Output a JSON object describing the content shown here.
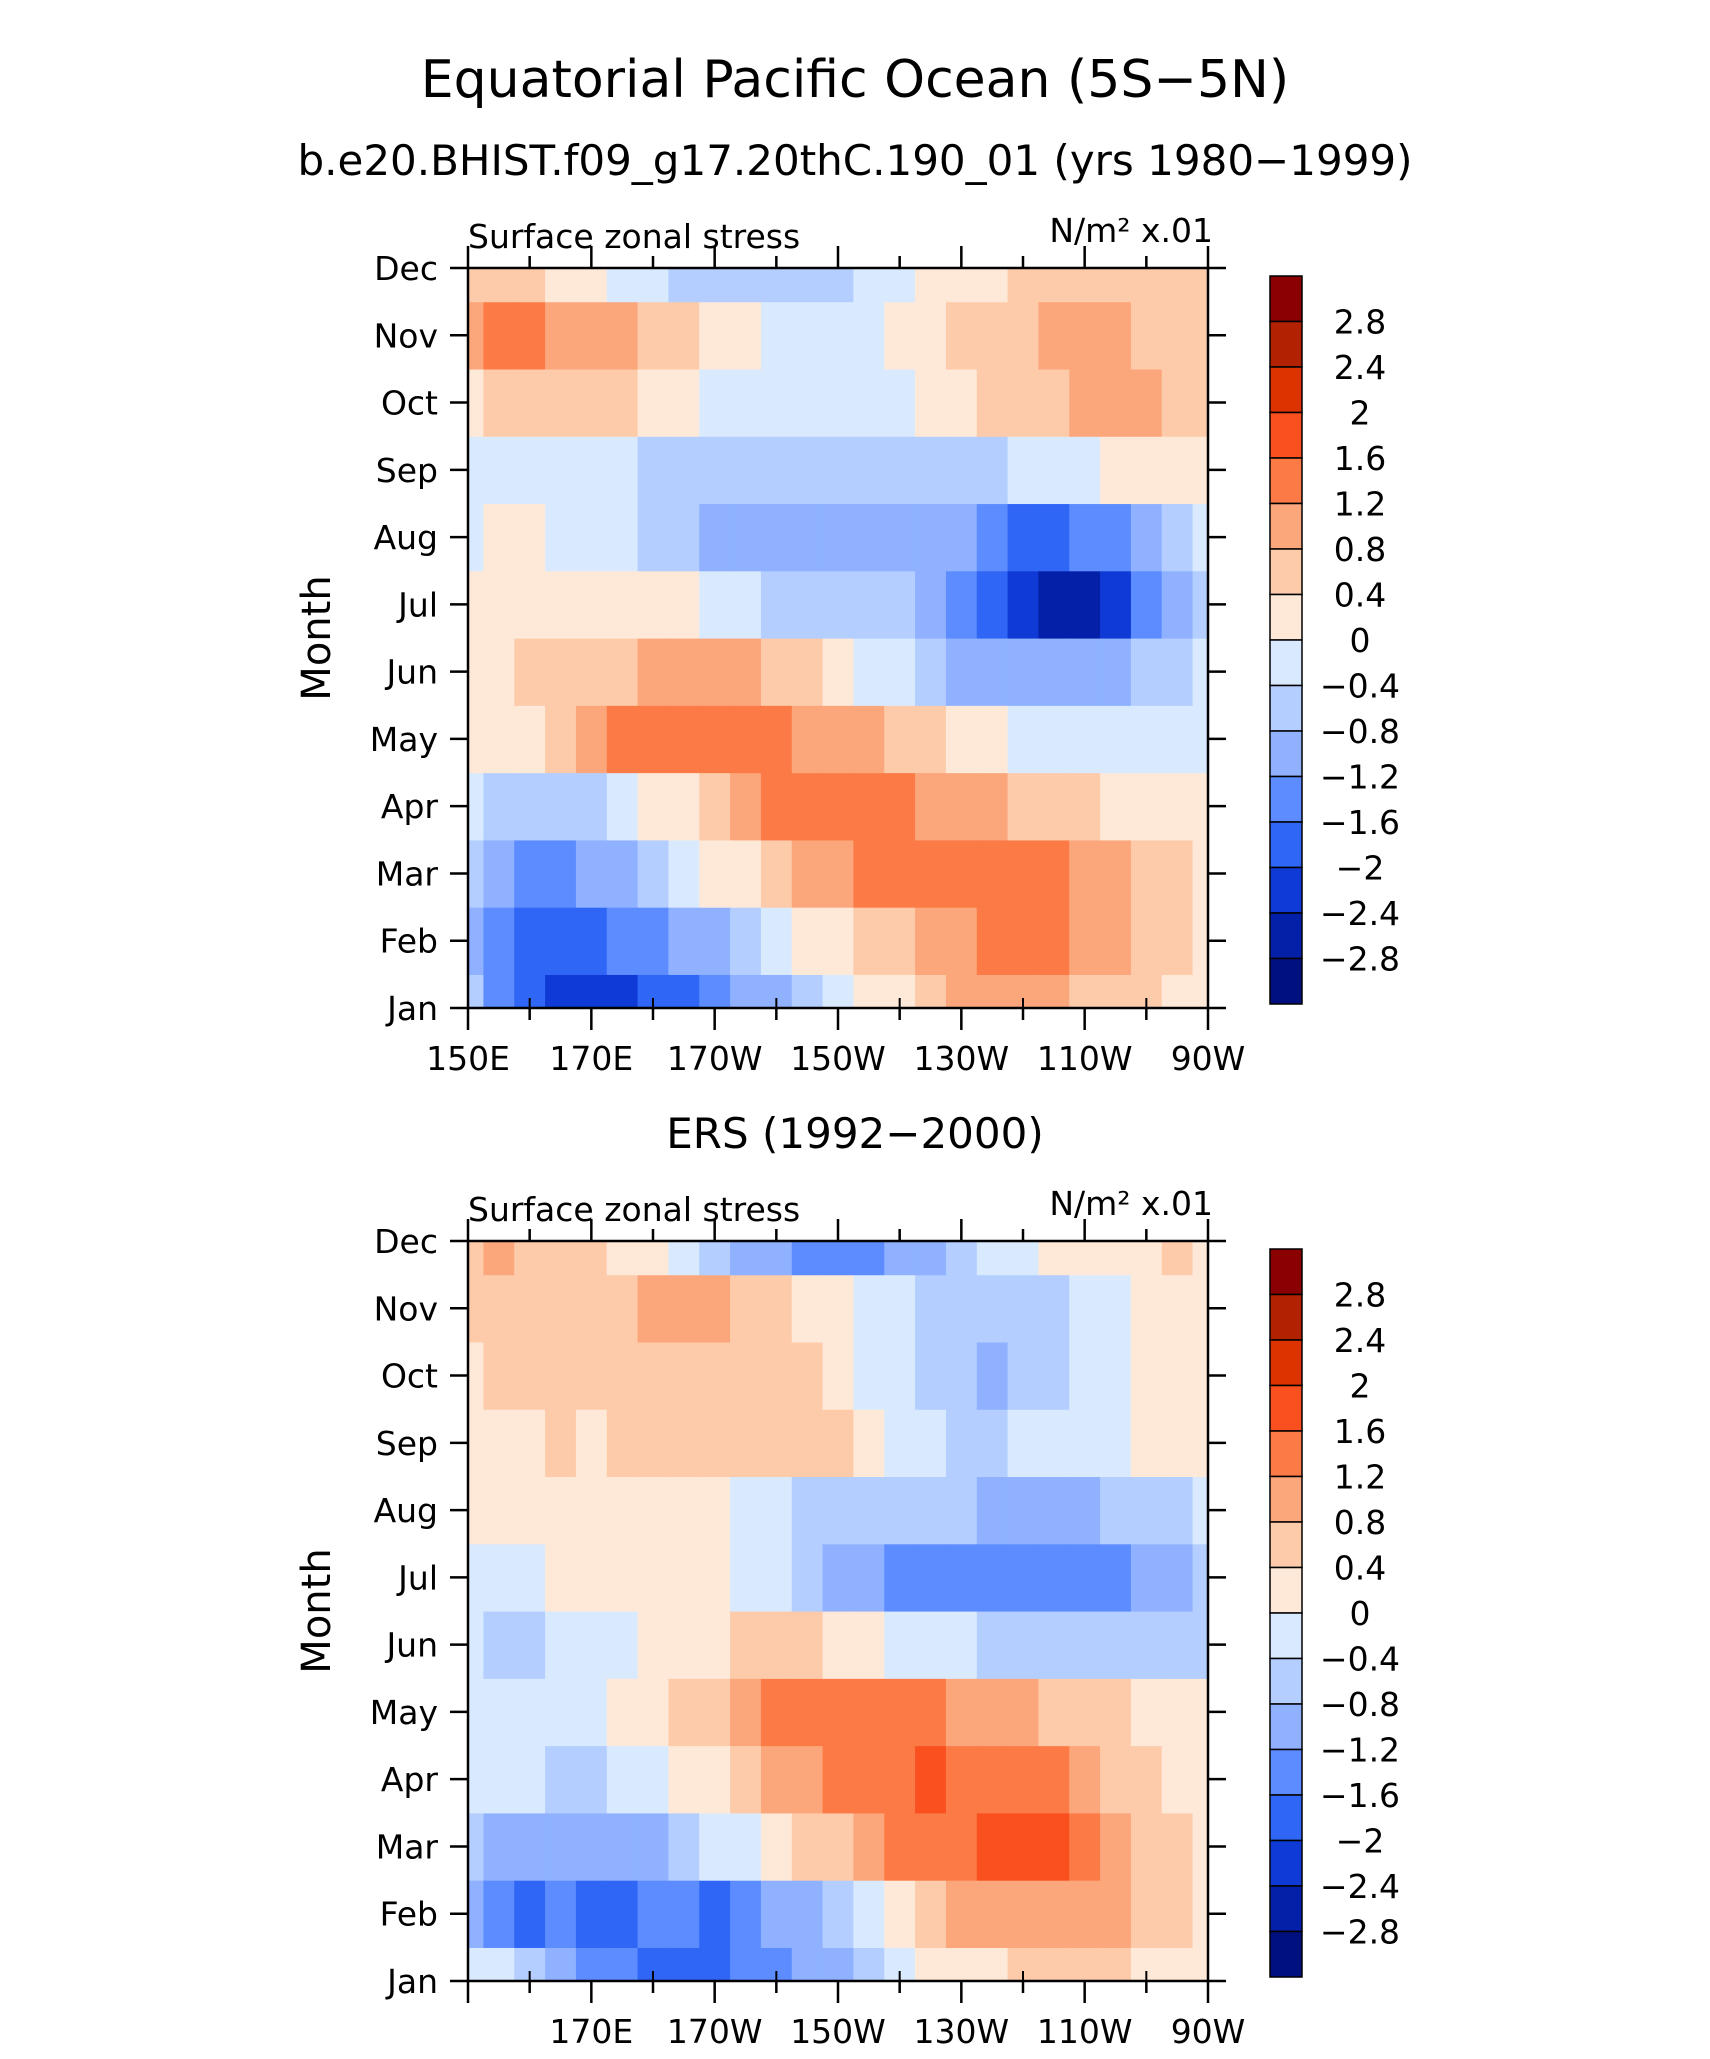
{
  "figure": {
    "title": "Equatorial Pacific Ocean (5S−5N)"
  },
  "colorbar": {
    "levels": [
      "2.8",
      "2.4",
      "2",
      "1.6",
      "1.2",
      "0.8",
      "0.4",
      "0",
      "−0.4",
      "−0.8",
      "−1.2",
      "−1.6",
      "−2",
      "−2.4",
      "−2.8"
    ],
    "colors": [
      "#8b0000",
      "#b22200",
      "#dd3300",
      "#fa5020",
      "#fb7a45",
      "#fca67c",
      "#fdcbaa",
      "#fee9d8",
      "#d9eaff",
      "#b3ceff",
      "#8fb1ff",
      "#5c8cff",
      "#2f66f5",
      "#0f3ad6",
      "#0520a8",
      "#00107f"
    ]
  },
  "chart_data": [
    {
      "type": "heatmap",
      "title": "b.e20.BHIST.f09_g17.20thC.190_01 (yrs 1980−1999)",
      "left_label": "Surface zonal stress",
      "units_label": "N/m² x.01",
      "xlabel": "",
      "ylabel": "Month",
      "x_ticks": [
        "150E",
        "170E",
        "170W",
        "150W",
        "130W",
        "110W",
        "90W"
      ],
      "y_ticks": [
        "Jan",
        "Feb",
        "Mar",
        "Apr",
        "May",
        "Jun",
        "Jul",
        "Aug",
        "Sep",
        "Oct",
        "Nov",
        "Dec"
      ],
      "xlim": [
        150,
        270
      ],
      "ylim": [
        1,
        12
      ],
      "x": [
        150,
        155,
        160,
        165,
        170,
        175,
        180,
        185,
        190,
        195,
        200,
        205,
        210,
        215,
        220,
        225,
        230,
        235,
        240,
        245,
        250,
        255,
        260,
        265,
        270
      ],
      "y": [
        "Jan",
        "Feb",
        "Mar",
        "Apr",
        "May",
        "Jun",
        "Jul",
        "Aug",
        "Sep",
        "Oct",
        "Nov",
        "Dec"
      ],
      "z": [
        [
          -0.8,
          -1.6,
          -2.0,
          -2.2,
          -2.2,
          -2.2,
          -2.0,
          -1.8,
          -1.6,
          -1.2,
          -0.9,
          -0.5,
          -0.2,
          0.1,
          0.3,
          0.5,
          0.8,
          0.9,
          0.9,
          0.8,
          0.6,
          0.5,
          0.4,
          0.3,
          0.2
        ],
        [
          -1.0,
          -1.6,
          -2.0,
          -2.0,
          -1.8,
          -1.6,
          -1.4,
          -1.2,
          -1.0,
          -0.6,
          -0.3,
          0.0,
          0.3,
          0.5,
          0.7,
          0.9,
          1.1,
          1.2,
          1.2,
          1.2,
          1.0,
          0.8,
          0.6,
          0.4,
          0.3
        ],
        [
          -0.8,
          -1.2,
          -1.4,
          -1.4,
          -1.2,
          -0.9,
          -0.6,
          -0.3,
          0.0,
          0.3,
          0.5,
          0.8,
          1.0,
          1.2,
          1.3,
          1.4,
          1.4,
          1.4,
          1.3,
          1.2,
          1.0,
          0.8,
          0.6,
          0.4,
          0.2
        ],
        [
          -0.3,
          -0.6,
          -0.8,
          -0.8,
          -0.6,
          -0.3,
          0.0,
          0.3,
          0.6,
          0.9,
          1.2,
          1.3,
          1.4,
          1.3,
          1.2,
          1.0,
          0.9,
          0.8,
          0.6,
          0.5,
          0.4,
          0.3,
          0.2,
          0.1,
          0.0
        ],
        [
          0.1,
          0.2,
          0.3,
          0.5,
          0.8,
          1.2,
          1.3,
          1.4,
          1.4,
          1.3,
          1.2,
          1.1,
          1.0,
          0.8,
          0.6,
          0.4,
          0.2,
          0.0,
          -0.2,
          -0.3,
          -0.4,
          -0.4,
          -0.4,
          -0.3,
          -0.2
        ],
        [
          0.2,
          0.3,
          0.4,
          0.5,
          0.6,
          0.7,
          0.8,
          0.9,
          0.9,
          0.8,
          0.6,
          0.4,
          0.2,
          -0.1,
          -0.4,
          -0.7,
          -0.9,
          -1.0,
          -1.1,
          -1.1,
          -1.0,
          -0.9,
          -0.8,
          -0.6,
          -0.4
        ],
        [
          0.0,
          0.2,
          0.3,
          0.3,
          0.3,
          0.2,
          0.1,
          0.0,
          -0.2,
          -0.4,
          -0.6,
          -0.7,
          -0.8,
          -0.8,
          -0.8,
          -0.9,
          -1.3,
          -1.8,
          -2.3,
          -2.7,
          -2.6,
          -2.2,
          -1.6,
          -1.0,
          -0.5
        ],
        [
          -0.2,
          0.0,
          0.0,
          -0.1,
          -0.2,
          -0.3,
          -0.5,
          -0.7,
          -0.9,
          -1.0,
          -1.1,
          -1.2,
          -1.2,
          -1.1,
          -1.0,
          -0.9,
          -1.2,
          -1.5,
          -1.7,
          -1.8,
          -1.6,
          -1.3,
          -0.9,
          -0.6,
          -0.3
        ],
        [
          -0.3,
          -0.2,
          -0.1,
          -0.2,
          -0.3,
          -0.4,
          -0.5,
          -0.6,
          -0.7,
          -0.8,
          -0.8,
          -0.8,
          -0.8,
          -0.7,
          -0.6,
          -0.5,
          -0.5,
          -0.5,
          -0.4,
          -0.3,
          -0.2,
          0.0,
          0.2,
          0.3,
          0.3
        ],
        [
          0.3,
          0.5,
          0.6,
          0.6,
          0.5,
          0.4,
          0.2,
          0.0,
          -0.2,
          -0.3,
          -0.4,
          -0.4,
          -0.3,
          -0.2,
          -0.1,
          0.0,
          0.2,
          0.4,
          0.6,
          0.7,
          0.8,
          0.8,
          0.8,
          0.7,
          0.6
        ],
        [
          1.0,
          1.3,
          1.2,
          1.0,
          0.9,
          0.8,
          0.6,
          0.4,
          0.2,
          0.0,
          -0.1,
          -0.2,
          -0.2,
          -0.1,
          0.0,
          0.2,
          0.4,
          0.6,
          0.7,
          0.8,
          0.8,
          0.8,
          0.7,
          0.7,
          0.6
        ],
        [
          0.5,
          0.6,
          0.5,
          0.3,
          0.1,
          -0.1,
          -0.3,
          -0.5,
          -0.6,
          -0.6,
          -0.6,
          -0.6,
          -0.5,
          -0.4,
          -0.2,
          0.0,
          0.2,
          0.3,
          0.4,
          0.4,
          0.5,
          0.5,
          0.5,
          0.5,
          0.4
        ]
      ]
    },
    {
      "type": "heatmap",
      "title": "ERS (1992−2000)",
      "left_label": "Surface zonal stress",
      "units_label": "N/m² x.01",
      "xlabel": "",
      "ylabel": "Month",
      "x_ticks": [
        "170E",
        "170W",
        "150W",
        "130W",
        "110W",
        "90W"
      ],
      "y_ticks": [
        "Jan",
        "Feb",
        "Mar",
        "Apr",
        "May",
        "Jun",
        "Jul",
        "Aug",
        "Sep",
        "Oct",
        "Nov",
        "Dec"
      ],
      "xlim": [
        150,
        270
      ],
      "ylim": [
        1,
        12
      ],
      "x": [
        150,
        155,
        160,
        165,
        170,
        175,
        180,
        185,
        190,
        195,
        200,
        205,
        210,
        215,
        220,
        225,
        230,
        235,
        240,
        245,
        250,
        255,
        260,
        265,
        270
      ],
      "y": [
        "Jan",
        "Feb",
        "Mar",
        "Apr",
        "May",
        "Jun",
        "Jul",
        "Aug",
        "Sep",
        "Oct",
        "Nov",
        "Dec"
      ],
      "z": [
        [
          -0.3,
          -0.4,
          -0.8,
          -1.0,
          -1.4,
          -1.6,
          -1.8,
          -1.9,
          -1.7,
          -1.6,
          -1.4,
          -1.1,
          -0.9,
          -0.6,
          -0.3,
          0.0,
          0.2,
          0.3,
          0.4,
          0.4,
          0.4,
          0.4,
          0.3,
          0.3,
          0.2
        ],
        [
          -1.0,
          -1.4,
          -1.8,
          -1.4,
          -1.8,
          -1.8,
          -1.6,
          -1.6,
          -1.8,
          -1.6,
          -1.2,
          -0.9,
          -0.5,
          -0.2,
          0.2,
          0.5,
          0.8,
          0.9,
          1.0,
          1.0,
          1.0,
          0.8,
          0.6,
          0.4,
          0.2
        ],
        [
          -0.6,
          -0.9,
          -1.0,
          -1.2,
          -1.0,
          -1.1,
          -0.9,
          -0.6,
          -0.4,
          -0.2,
          0.1,
          0.4,
          0.7,
          1.0,
          1.2,
          1.3,
          1.5,
          1.7,
          1.7,
          1.6,
          1.4,
          1.0,
          0.7,
          0.4,
          0.2
        ],
        [
          -0.4,
          -0.3,
          -0.3,
          -0.5,
          -0.8,
          -0.2,
          -0.1,
          0.1,
          0.3,
          0.6,
          0.8,
          1.0,
          1.2,
          1.4,
          1.5,
          1.6,
          1.3,
          1.2,
          1.2,
          1.2,
          1.0,
          0.7,
          0.5,
          0.3,
          0.1
        ],
        [
          -0.2,
          -0.3,
          -0.3,
          -0.2,
          -0.1,
          0.1,
          0.2,
          0.4,
          0.6,
          0.9,
          1.2,
          1.5,
          1.4,
          1.5,
          1.4,
          1.3,
          1.1,
          1.0,
          0.8,
          0.7,
          0.6,
          0.5,
          0.3,
          0.1,
          0.0
        ],
        [
          -0.2,
          -0.5,
          -0.5,
          -0.3,
          -0.2,
          -0.1,
          0.1,
          0.2,
          0.3,
          0.4,
          0.4,
          0.4,
          0.2,
          0.0,
          -0.2,
          -0.3,
          -0.4,
          -0.5,
          -0.6,
          -0.6,
          -0.7,
          -0.8,
          -0.8,
          -0.6,
          -0.5
        ],
        [
          -0.1,
          -0.2,
          -0.1,
          0.0,
          0.1,
          0.2,
          0.3,
          0.2,
          0.0,
          -0.1,
          -0.3,
          -0.6,
          -0.9,
          -1.2,
          -1.4,
          -1.6,
          -1.4,
          -1.5,
          -1.6,
          -1.4,
          -1.6,
          -1.5,
          -1.2,
          -1.0,
          -0.8
        ],
        [
          0.1,
          0.2,
          0.3,
          0.3,
          0.2,
          0.3,
          0.2,
          0.2,
          0.0,
          -0.1,
          -0.3,
          -0.5,
          -0.6,
          -0.7,
          -0.8,
          -0.8,
          -0.8,
          -0.9,
          -1.0,
          -1.0,
          -0.9,
          -0.8,
          -0.7,
          -0.5,
          -0.3
        ],
        [
          0.1,
          0.2,
          0.3,
          0.4,
          0.3,
          0.4,
          0.5,
          0.6,
          0.6,
          0.7,
          0.7,
          0.6,
          0.4,
          0.1,
          -0.2,
          -0.4,
          -0.5,
          -0.5,
          -0.4,
          -0.3,
          -0.2,
          -0.1,
          0.0,
          0.1,
          0.2
        ],
        [
          0.3,
          0.5,
          0.4,
          0.5,
          0.6,
          0.5,
          0.6,
          0.7,
          0.6,
          0.5,
          0.5,
          0.4,
          0.1,
          -0.1,
          -0.3,
          -0.5,
          -0.7,
          -0.9,
          -0.8,
          -0.6,
          -0.4,
          -0.2,
          0.0,
          0.1,
          0.2
        ],
        [
          0.6,
          0.7,
          0.6,
          0.5,
          0.6,
          0.6,
          0.8,
          0.9,
          0.8,
          0.6,
          0.4,
          0.2,
          0.0,
          -0.2,
          -0.3,
          -0.5,
          -0.6,
          -0.7,
          -0.6,
          -0.5,
          -0.3,
          -0.1,
          0.1,
          0.2,
          0.3
        ],
        [
          0.6,
          0.8,
          0.7,
          0.5,
          0.5,
          0.3,
          0.1,
          -0.2,
          -0.6,
          -0.9,
          -1.2,
          -1.5,
          -1.6,
          -1.5,
          -1.2,
          -0.9,
          -0.6,
          -0.3,
          -0.1,
          0.1,
          0.2,
          0.3,
          0.3,
          0.4,
          0.3
        ]
      ]
    }
  ]
}
